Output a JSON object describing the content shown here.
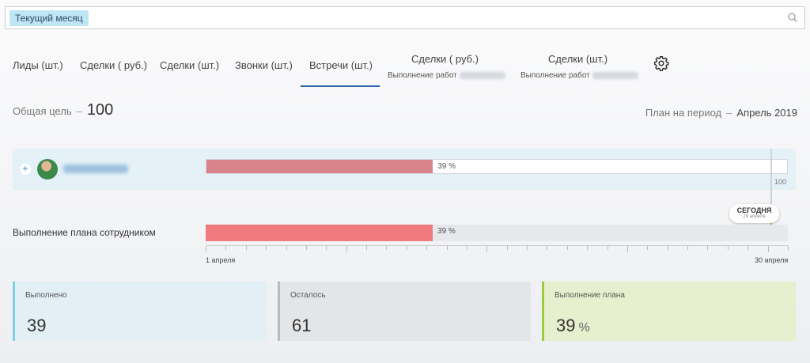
{
  "search": {
    "chip": "Текущий месяц"
  },
  "tabs": [
    {
      "label": "Лиды (шт.)"
    },
    {
      "label": "Сделки ( руб.)"
    },
    {
      "label": "Сделки (шт.)"
    },
    {
      "label": "Звонки (шт.)"
    },
    {
      "label": "Встречи (шт.)",
      "active": true
    },
    {
      "label": "Сделки ( руб.)",
      "sub": "Выполнение работ"
    },
    {
      "label": "Сделки (шт.)",
      "sub": "Выполнение работ"
    }
  ],
  "goal": {
    "label": "Общая цель",
    "dash": "–",
    "value": "100"
  },
  "period": {
    "label": "План на период",
    "dash": "–",
    "month": "Апрель 2019"
  },
  "employee": {
    "expand": "+",
    "progress_label": "39 %",
    "progress": 0.39,
    "cap": "100"
  },
  "today": {
    "label": "СЕГОДНЯ",
    "date": "29 апреля"
  },
  "plan": {
    "label": "Выполнение плана сотрудником",
    "progress_label": "39 %",
    "progress": 0.39
  },
  "axis": {
    "start": "1 апреля",
    "end": "30 апреля"
  },
  "cards": {
    "done": {
      "title": "Выполнено",
      "value": "39"
    },
    "left": {
      "title": "Осталось",
      "value": "61"
    },
    "plan": {
      "title": "Выполнение плана",
      "value": "39",
      "unit": "%"
    }
  },
  "colors": {
    "accent": "#2f5fa8",
    "chip": "#bfe6f5",
    "bar_employee": "#d9848b",
    "bar_plan": "#ef7b7f",
    "today": "#9ccc3c"
  }
}
